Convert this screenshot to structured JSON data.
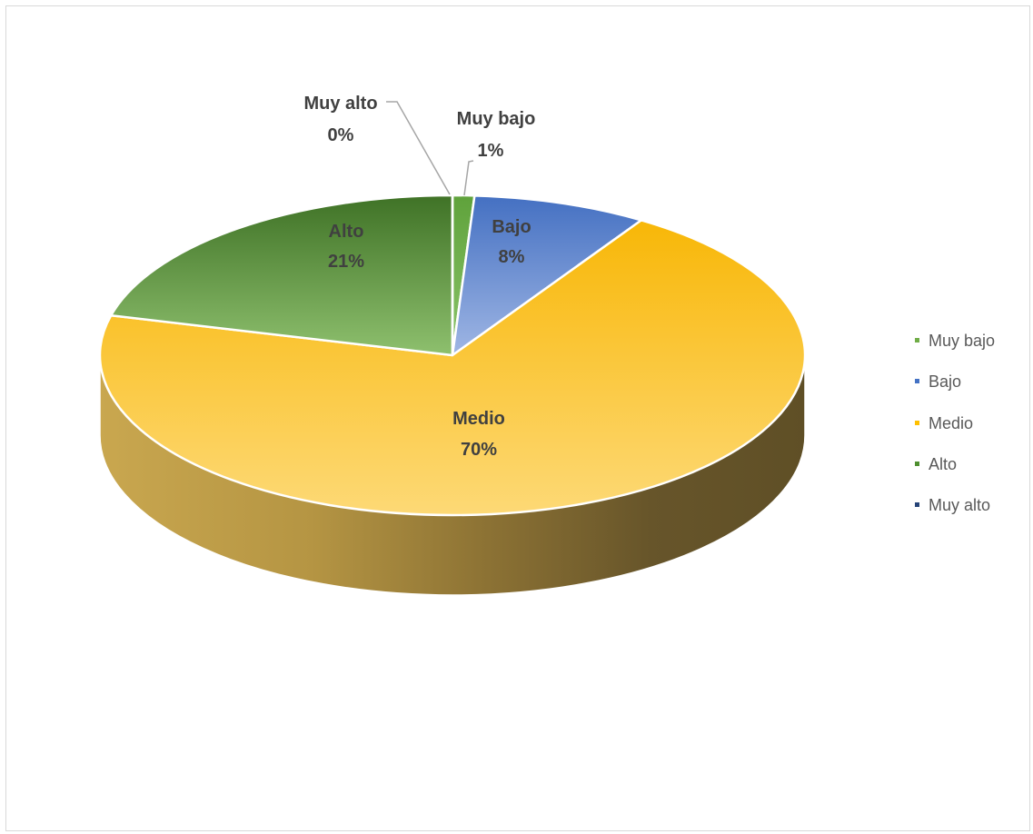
{
  "chart_data": {
    "type": "pie",
    "title": "",
    "slices": [
      {
        "label": "Muy bajo",
        "value": 1,
        "value_label": "1%",
        "color": "#70ad47"
      },
      {
        "label": "Bajo",
        "value": 8,
        "value_label": "8%",
        "color": "#4472c4"
      },
      {
        "label": "Medio",
        "value": 70,
        "value_label": "70%",
        "color": "#ffc000"
      },
      {
        "label": "Alto",
        "value": 21,
        "value_label": "21%",
        "color": "#4e8f2f"
      },
      {
        "label": "Muy alto",
        "value": 0,
        "value_label": "0%",
        "color": "#264478"
      }
    ],
    "style": "3d",
    "legend": {
      "position": "right"
    }
  }
}
